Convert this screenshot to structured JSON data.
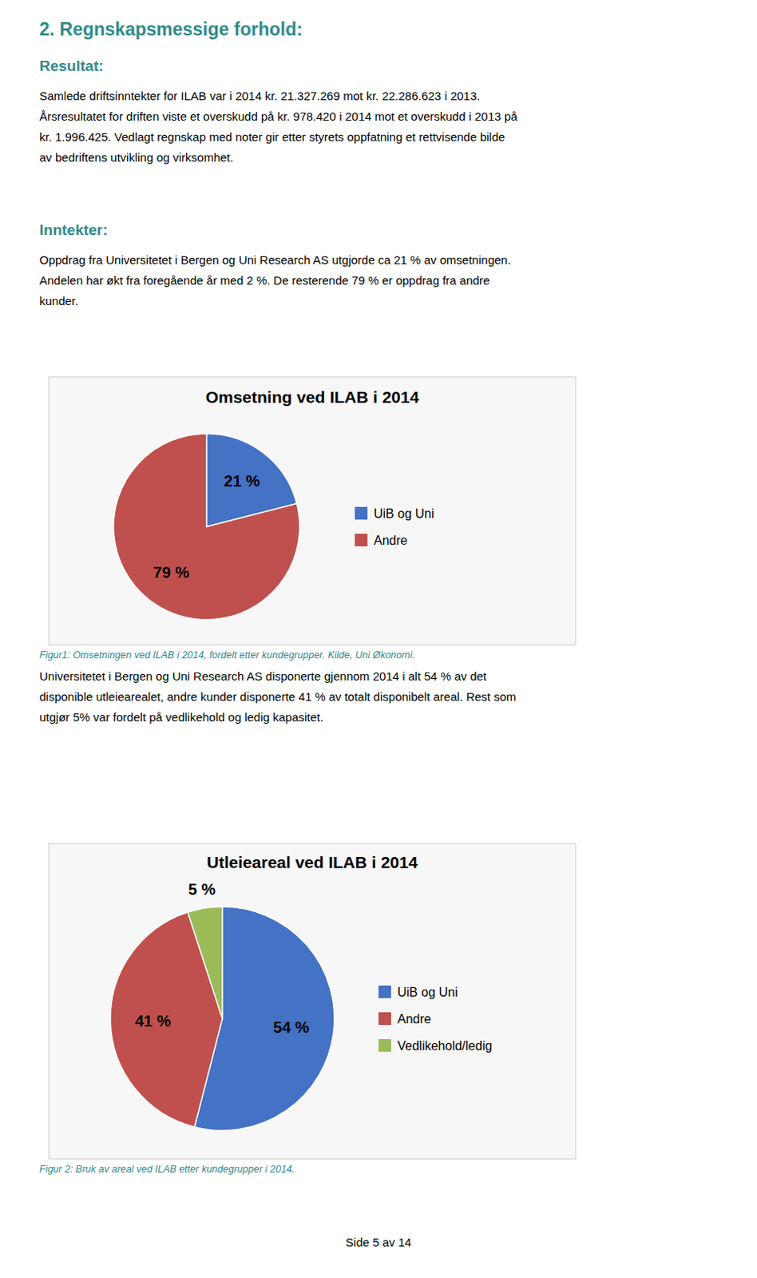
{
  "page": {
    "title": "2. Regnskapsmessige forhold:",
    "heading_color": "#2E8B8B",
    "caption_color": "#2E8B8B",
    "sections": [
      {
        "heading": "Resultat:",
        "lines": [
          "Samlede driftsinntekter for ILAB var i 2014 kr. 21.327.269 mot kr. 22.286.623 i 2013.",
          "Årsresultatet for driften viste et overskudd på kr. 978.420 i 2014 mot et overskudd i 2013 på",
          "kr. 1.996.425. Vedlagt regnskap med noter gir etter styrets oppfatning et rettvisende bilde",
          "av bedriftens utvikling og virksomhet."
        ]
      },
      {
        "heading": "Inntekter:",
        "lines": [
          "Oppdrag fra Universitetet i Bergen og Uni Research AS utgjorde ca 21 % av omsetningen.",
          "Andelen har økt fra foregående år med 2 %. De resterende 79 % er oppdrag fra andre",
          "kunder."
        ]
      }
    ],
    "between_lines": [
      "Universitetet i Bergen og Uni Research AS disponerte gjennom 2014 i alt 54 % av det",
      "disponible utleiearealet, andre kunder disponerte 41 % av totalt disponibelt areal. Rest som",
      "utgjør 5% var fordelt på vedlikehold og ledig kapasitet."
    ],
    "captions": [
      "Figur1: Omsetningen ved ILAB i 2014, fordelt etter kundegrupper. Kilde, Uni Økonomi.",
      "Figur 2: Bruk av areal ved ILAB etter kundegrupper i 2014."
    ],
    "footer": "Side 5 av 14"
  },
  "chart_data": [
    {
      "type": "pie",
      "title": "Omsetning ved ILAB i 2014",
      "categories": [
        "UiB og Uni",
        "Andre"
      ],
      "values": [
        21,
        79
      ],
      "value_labels": [
        "21 %",
        "79 %"
      ],
      "colors": [
        "#4472C4",
        "#C0504D"
      ],
      "data_labels": true,
      "legend": "right"
    },
    {
      "type": "pie",
      "title": "Utleieareal ved ILAB i 2014",
      "categories": [
        "UiB og Uni",
        "Andre",
        "Vedlikehold/ledig"
      ],
      "values": [
        54,
        41,
        5
      ],
      "value_labels": [
        "54 %",
        "41 %",
        "5 %"
      ],
      "colors": [
        "#4472C4",
        "#C0504D",
        "#9BBB59"
      ],
      "data_labels": true,
      "legend": "right"
    }
  ]
}
